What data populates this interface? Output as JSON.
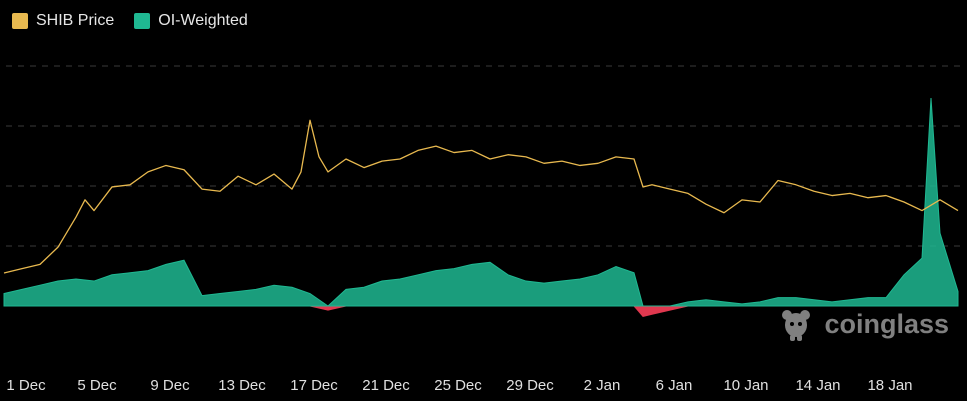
{
  "legend": {
    "items": [
      {
        "label": "SHIB Price",
        "color": "#e8b94f"
      },
      {
        "label": "OI-Weighted",
        "color": "#1fb892"
      }
    ]
  },
  "watermark": {
    "text": "coinglass",
    "icon": "coinglass-logo-icon"
  },
  "chart_data": {
    "type": "area",
    "title": "",
    "xlabel": "",
    "ylabel": "",
    "grid": true,
    "legend_position": "top-left",
    "x_ticks": [
      "1 Dec",
      "5 Dec",
      "9 Dec",
      "13 Dec",
      "17 Dec",
      "21 Dec",
      "25 Dec",
      "29 Dec",
      "2 Jan",
      "6 Jan",
      "10 Jan",
      "14 Jan",
      "18 Jan"
    ],
    "x_range": [
      0,
      53
    ],
    "series": [
      {
        "name": "SHIB Price",
        "kind": "line",
        "color": "#e8b94f",
        "axis": "price",
        "range": [
          0,
          1
        ],
        "points": [
          [
            0,
            0.07
          ],
          [
            1,
            0.09
          ],
          [
            2,
            0.11
          ],
          [
            3,
            0.19
          ],
          [
            4,
            0.33
          ],
          [
            4.5,
            0.41
          ],
          [
            5,
            0.36
          ],
          [
            6,
            0.47
          ],
          [
            7,
            0.48
          ],
          [
            8,
            0.54
          ],
          [
            9,
            0.57
          ],
          [
            10,
            0.55
          ],
          [
            11,
            0.46
          ],
          [
            12,
            0.45
          ],
          [
            13,
            0.52
          ],
          [
            14,
            0.48
          ],
          [
            15,
            0.53
          ],
          [
            16,
            0.46
          ],
          [
            16.5,
            0.54
          ],
          [
            17,
            0.78
          ],
          [
            17.5,
            0.61
          ],
          [
            18,
            0.54
          ],
          [
            19,
            0.6
          ],
          [
            20,
            0.56
          ],
          [
            21,
            0.59
          ],
          [
            22,
            0.6
          ],
          [
            23,
            0.64
          ],
          [
            24,
            0.66
          ],
          [
            25,
            0.63
          ],
          [
            26,
            0.64
          ],
          [
            27,
            0.6
          ],
          [
            28,
            0.62
          ],
          [
            29,
            0.61
          ],
          [
            30,
            0.58
          ],
          [
            31,
            0.59
          ],
          [
            32,
            0.57
          ],
          [
            33,
            0.58
          ],
          [
            34,
            0.61
          ],
          [
            35,
            0.6
          ],
          [
            35.5,
            0.47
          ],
          [
            36,
            0.48
          ],
          [
            37,
            0.46
          ],
          [
            38,
            0.44
          ],
          [
            39,
            0.39
          ],
          [
            40,
            0.35
          ],
          [
            41,
            0.41
          ],
          [
            42,
            0.4
          ],
          [
            43,
            0.5
          ],
          [
            44,
            0.48
          ],
          [
            45,
            0.45
          ],
          [
            46,
            0.43
          ],
          [
            47,
            0.44
          ],
          [
            48,
            0.42
          ],
          [
            49,
            0.43
          ],
          [
            50,
            0.4
          ],
          [
            51,
            0.36
          ],
          [
            52,
            0.41
          ],
          [
            53,
            0.36
          ]
        ]
      },
      {
        "name": "OI-Weighted",
        "kind": "area",
        "color_positive": "#1fb892",
        "color_negative": "#e0384f",
        "axis": "funding",
        "range": [
          -0.2,
          1
        ],
        "points": [
          [
            0,
            0.06
          ],
          [
            1,
            0.08
          ],
          [
            2,
            0.1
          ],
          [
            3,
            0.12
          ],
          [
            4,
            0.13
          ],
          [
            5,
            0.12
          ],
          [
            6,
            0.15
          ],
          [
            7,
            0.16
          ],
          [
            8,
            0.17
          ],
          [
            9,
            0.2
          ],
          [
            10,
            0.22
          ],
          [
            11,
            0.05
          ],
          [
            12,
            0.06
          ],
          [
            13,
            0.07
          ],
          [
            14,
            0.08
          ],
          [
            15,
            0.1
          ],
          [
            16,
            0.09
          ],
          [
            17,
            0.06
          ],
          [
            18,
            -0.02
          ],
          [
            19,
            0.08
          ],
          [
            20,
            0.09
          ],
          [
            21,
            0.12
          ],
          [
            22,
            0.13
          ],
          [
            23,
            0.15
          ],
          [
            24,
            0.17
          ],
          [
            25,
            0.18
          ],
          [
            26,
            0.2
          ],
          [
            27,
            0.21
          ],
          [
            28,
            0.15
          ],
          [
            29,
            0.12
          ],
          [
            30,
            0.11
          ],
          [
            31,
            0.12
          ],
          [
            32,
            0.13
          ],
          [
            33,
            0.15
          ],
          [
            34,
            0.19
          ],
          [
            35,
            0.16
          ],
          [
            35.5,
            -0.05
          ],
          [
            36,
            -0.04
          ],
          [
            37,
            -0.02
          ],
          [
            38,
            0.02
          ],
          [
            39,
            0.03
          ],
          [
            40,
            0.02
          ],
          [
            41,
            0.01
          ],
          [
            42,
            0.02
          ],
          [
            43,
            0.04
          ],
          [
            44,
            0.04
          ],
          [
            45,
            0.03
          ],
          [
            46,
            0.02
          ],
          [
            47,
            0.03
          ],
          [
            48,
            0.04
          ],
          [
            49,
            0.04
          ],
          [
            50,
            0.15
          ],
          [
            51,
            0.23
          ],
          [
            51.5,
            1.0
          ],
          [
            52,
            0.35
          ],
          [
            53,
            0.07
          ]
        ]
      }
    ]
  }
}
